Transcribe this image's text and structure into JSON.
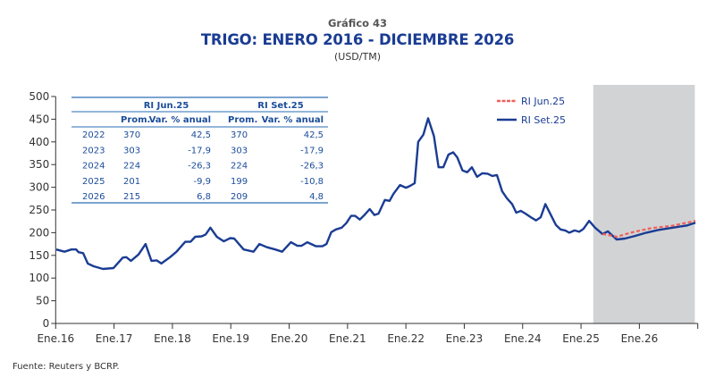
{
  "header": {
    "figure_number": "Gráfico 43",
    "title": "TRIGO: ENERO 2016 - DICIEMBRE 2026",
    "units": "(USD/TM)"
  },
  "footer": {
    "source": "Fuente: Reuters y BCRP."
  },
  "colors": {
    "series_blue": "#1a3c93",
    "series_red": "#f0605a",
    "forecast_shade": "#d2d3d5",
    "table_line": "#2a6db5"
  },
  "chart_data": {
    "type": "line",
    "title": "TRIGO: ENERO 2016 - DICIEMBRE 2026",
    "subtitle": "(USD/TM)",
    "xlabel": "",
    "ylabel": "USD/TM",
    "xlim": [
      2016.0,
      2027.0
    ],
    "ylim": [
      0,
      500
    ],
    "yticks": [
      0,
      50,
      100,
      150,
      200,
      250,
      300,
      350,
      400,
      450,
      500
    ],
    "xticks": [
      {
        "x": 2016,
        "label": "Ene.16"
      },
      {
        "x": 2017,
        "label": "Ene.17"
      },
      {
        "x": 2018,
        "label": "Ene.18"
      },
      {
        "x": 2019,
        "label": "Ene.19"
      },
      {
        "x": 2020,
        "label": "Ene.20"
      },
      {
        "x": 2021,
        "label": "Ene.21"
      },
      {
        "x": 2022,
        "label": "Ene.22"
      },
      {
        "x": 2023,
        "label": "Ene.23"
      },
      {
        "x": 2024,
        "label": "Ene.24"
      },
      {
        "x": 2025,
        "label": "Ene.25"
      },
      {
        "x": 2026,
        "label": "Ene.26"
      }
    ],
    "grid": false,
    "legend_position": "top-right",
    "forecast_region": [
      2025.21,
      2026.95
    ],
    "series": [
      {
        "name": "RI Jun.25",
        "style": "dashed",
        "x": [
          2025.37,
          2025.46,
          2025.61,
          2025.85,
          2026.2,
          2026.55,
          2026.96
        ],
        "y": [
          197,
          195,
          191,
          200,
          210,
          215,
          226
        ]
      },
      {
        "name": "RI Set.25",
        "style": "solid",
        "x": [
          2016.01,
          2016.15,
          2016.27,
          2016.35,
          2016.39,
          2016.47,
          2016.55,
          2016.65,
          2016.81,
          2016.99,
          2017.06,
          2017.15,
          2017.21,
          2017.29,
          2017.42,
          2017.54,
          2017.64,
          2017.73,
          2017.81,
          2017.96,
          2018.07,
          2018.22,
          2018.31,
          2018.39,
          2018.5,
          2018.57,
          2018.65,
          2018.76,
          2018.88,
          2018.99,
          2019.06,
          2019.22,
          2019.39,
          2019.49,
          2019.62,
          2019.76,
          2019.88,
          2020.03,
          2020.14,
          2020.21,
          2020.31,
          2020.46,
          2020.57,
          2020.64,
          2020.72,
          2020.8,
          2020.9,
          2020.98,
          2021.06,
          2021.13,
          2021.21,
          2021.29,
          2021.38,
          2021.46,
          2021.53,
          2021.64,
          2021.72,
          2021.79,
          2021.9,
          2022.0,
          2022.07,
          2022.15,
          2022.21,
          2022.3,
          2022.38,
          2022.48,
          2022.56,
          2022.64,
          2022.73,
          2022.81,
          2022.88,
          2022.97,
          2023.05,
          2023.13,
          2023.22,
          2023.31,
          2023.4,
          2023.48,
          2023.56,
          2023.65,
          2023.73,
          2023.82,
          2023.89,
          2023.97,
          2024.05,
          2024.14,
          2024.23,
          2024.31,
          2024.39,
          2024.48,
          2024.57,
          2024.65,
          2024.73,
          2024.8,
          2024.89,
          2024.97,
          2025.04,
          2025.14,
          2025.24,
          2025.37,
          2025.46,
          2025.61,
          2025.75,
          2025.93,
          2026.12,
          2026.32,
          2026.62,
          2026.82,
          2026.96
        ],
        "y": [
          163,
          158,
          163,
          163,
          157,
          155,
          132,
          126,
          120,
          122,
          132,
          145,
          146,
          138,
          152,
          175,
          138,
          139,
          132,
          146,
          158,
          180,
          180,
          191,
          192,
          196,
          211,
          191,
          181,
          188,
          187,
          163,
          158,
          175,
          168,
          163,
          158,
          179,
          171,
          171,
          179,
          170,
          170,
          175,
          201,
          207,
          211,
          221,
          237,
          237,
          229,
          239,
          252,
          239,
          242,
          272,
          270,
          286,
          305,
          299,
          303,
          309,
          400,
          416,
          452,
          413,
          344,
          344,
          372,
          377,
          366,
          337,
          333,
          344,
          323,
          331,
          330,
          325,
          327,
          291,
          276,
          263,
          244,
          248,
          242,
          234,
          227,
          234,
          263,
          240,
          217,
          207,
          205,
          200,
          205,
          202,
          208,
          226,
          211,
          197,
          203,
          185,
          187,
          193,
          200,
          206,
          212,
          216,
          222
        ]
      }
    ]
  },
  "table": {
    "groups": [
      "RI Jun.25",
      "RI Set.25"
    ],
    "columns": [
      "Prom.",
      "Var. % anual",
      "Prom.",
      "Var. % anual"
    ],
    "rows": [
      {
        "year": "2022",
        "values": [
          "370",
          "42,5",
          "370",
          "42,5"
        ]
      },
      {
        "year": "2023",
        "values": [
          "303",
          "-17,9",
          "303",
          "-17,9"
        ]
      },
      {
        "year": "2024",
        "values": [
          "224",
          "-26,3",
          "224",
          "-26,3"
        ]
      },
      {
        "year": "2025",
        "values": [
          "201",
          "-9,9",
          "199",
          "-10,8"
        ]
      },
      {
        "year": "2026",
        "values": [
          "215",
          "6,8",
          "209",
          "4,8"
        ]
      }
    ]
  }
}
